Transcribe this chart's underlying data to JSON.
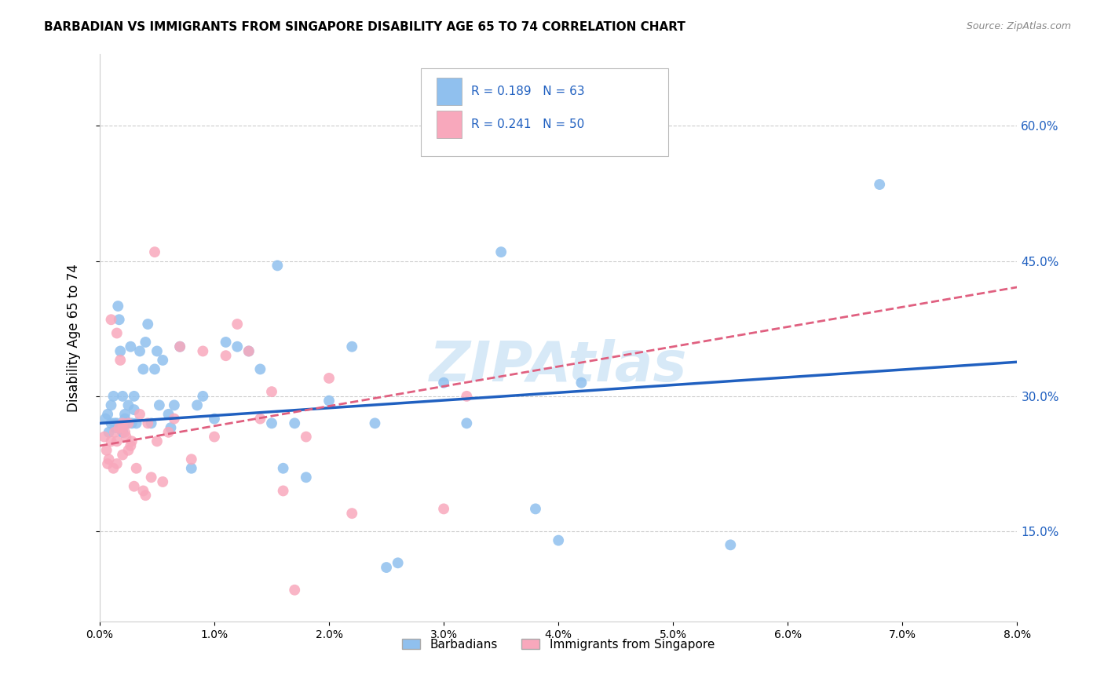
{
  "title": "BARBADIAN VS IMMIGRANTS FROM SINGAPORE DISABILITY AGE 65 TO 74 CORRELATION CHART",
  "source": "Source: ZipAtlas.com",
  "ylabel": "Disability Age 65 to 74",
  "xlim": [
    0.0,
    8.0
  ],
  "ylim": [
    5.0,
    68.0
  ],
  "yticks": [
    15.0,
    30.0,
    45.0,
    60.0
  ],
  "xticks": [
    0.0,
    1.0,
    2.0,
    3.0,
    4.0,
    5.0,
    6.0,
    7.0,
    8.0
  ],
  "legend_label1": "Barbadians",
  "legend_label2": "Immigrants from Singapore",
  "R1": 0.189,
  "N1": 63,
  "R2": 0.241,
  "N2": 50,
  "color1": "#90C0EE",
  "color2": "#F8A8BC",
  "line_color1": "#2060C0",
  "line_color2": "#E06080",
  "watermark": "ZIPAtlas",
  "blue_x": [
    0.05,
    0.07,
    0.08,
    0.1,
    0.12,
    0.13,
    0.14,
    0.15,
    0.16,
    0.17,
    0.18,
    0.2,
    0.2,
    0.22,
    0.22,
    0.25,
    0.25,
    0.27,
    0.28,
    0.3,
    0.3,
    0.32,
    0.35,
    0.38,
    0.4,
    0.42,
    0.45,
    0.48,
    0.5,
    0.52,
    0.55,
    0.6,
    0.62,
    0.65,
    0.7,
    0.8,
    0.85,
    0.9,
    1.0,
    1.1,
    1.2,
    1.3,
    1.4,
    1.5,
    1.55,
    1.6,
    1.7,
    1.8,
    2.0,
    2.2,
    2.4,
    2.5,
    2.6,
    3.0,
    3.2,
    3.5,
    3.8,
    4.0,
    4.2,
    5.5,
    6.8,
    0.1,
    0.2
  ],
  "blue_y": [
    27.5,
    28.0,
    26.0,
    29.0,
    30.0,
    27.0,
    26.5,
    27.0,
    40.0,
    38.5,
    35.0,
    30.0,
    26.0,
    28.0,
    27.5,
    29.0,
    27.0,
    35.5,
    27.0,
    30.0,
    28.5,
    27.0,
    35.0,
    33.0,
    36.0,
    38.0,
    27.0,
    33.0,
    35.0,
    29.0,
    34.0,
    28.0,
    26.5,
    29.0,
    35.5,
    22.0,
    29.0,
    30.0,
    27.5,
    36.0,
    35.5,
    35.0,
    33.0,
    27.0,
    44.5,
    22.0,
    27.0,
    21.0,
    29.5,
    35.5,
    27.0,
    11.0,
    11.5,
    31.5,
    27.0,
    46.0,
    17.5,
    14.0,
    31.5,
    13.5,
    53.5,
    27.0,
    26.0
  ],
  "pink_x": [
    0.04,
    0.06,
    0.07,
    0.08,
    0.1,
    0.1,
    0.12,
    0.13,
    0.15,
    0.15,
    0.17,
    0.18,
    0.2,
    0.2,
    0.22,
    0.23,
    0.25,
    0.27,
    0.28,
    0.3,
    0.32,
    0.35,
    0.38,
    0.4,
    0.42,
    0.45,
    0.48,
    0.5,
    0.55,
    0.6,
    0.65,
    0.7,
    0.8,
    0.9,
    1.0,
    1.1,
    1.2,
    1.3,
    1.4,
    1.5,
    1.6,
    1.7,
    1.8,
    2.0,
    2.2,
    3.0,
    3.2,
    0.15,
    0.2,
    0.25
  ],
  "pink_y": [
    25.5,
    24.0,
    22.5,
    23.0,
    25.0,
    38.5,
    22.0,
    26.0,
    22.5,
    37.0,
    26.5,
    34.0,
    23.5,
    27.0,
    26.0,
    25.5,
    24.0,
    24.5,
    25.0,
    20.0,
    22.0,
    28.0,
    19.5,
    19.0,
    27.0,
    21.0,
    46.0,
    25.0,
    20.5,
    26.0,
    27.5,
    35.5,
    23.0,
    35.0,
    25.5,
    34.5,
    38.0,
    35.0,
    27.5,
    30.5,
    19.5,
    8.5,
    25.5,
    32.0,
    17.0,
    17.5,
    30.0,
    25.0,
    26.5,
    27.0
  ]
}
